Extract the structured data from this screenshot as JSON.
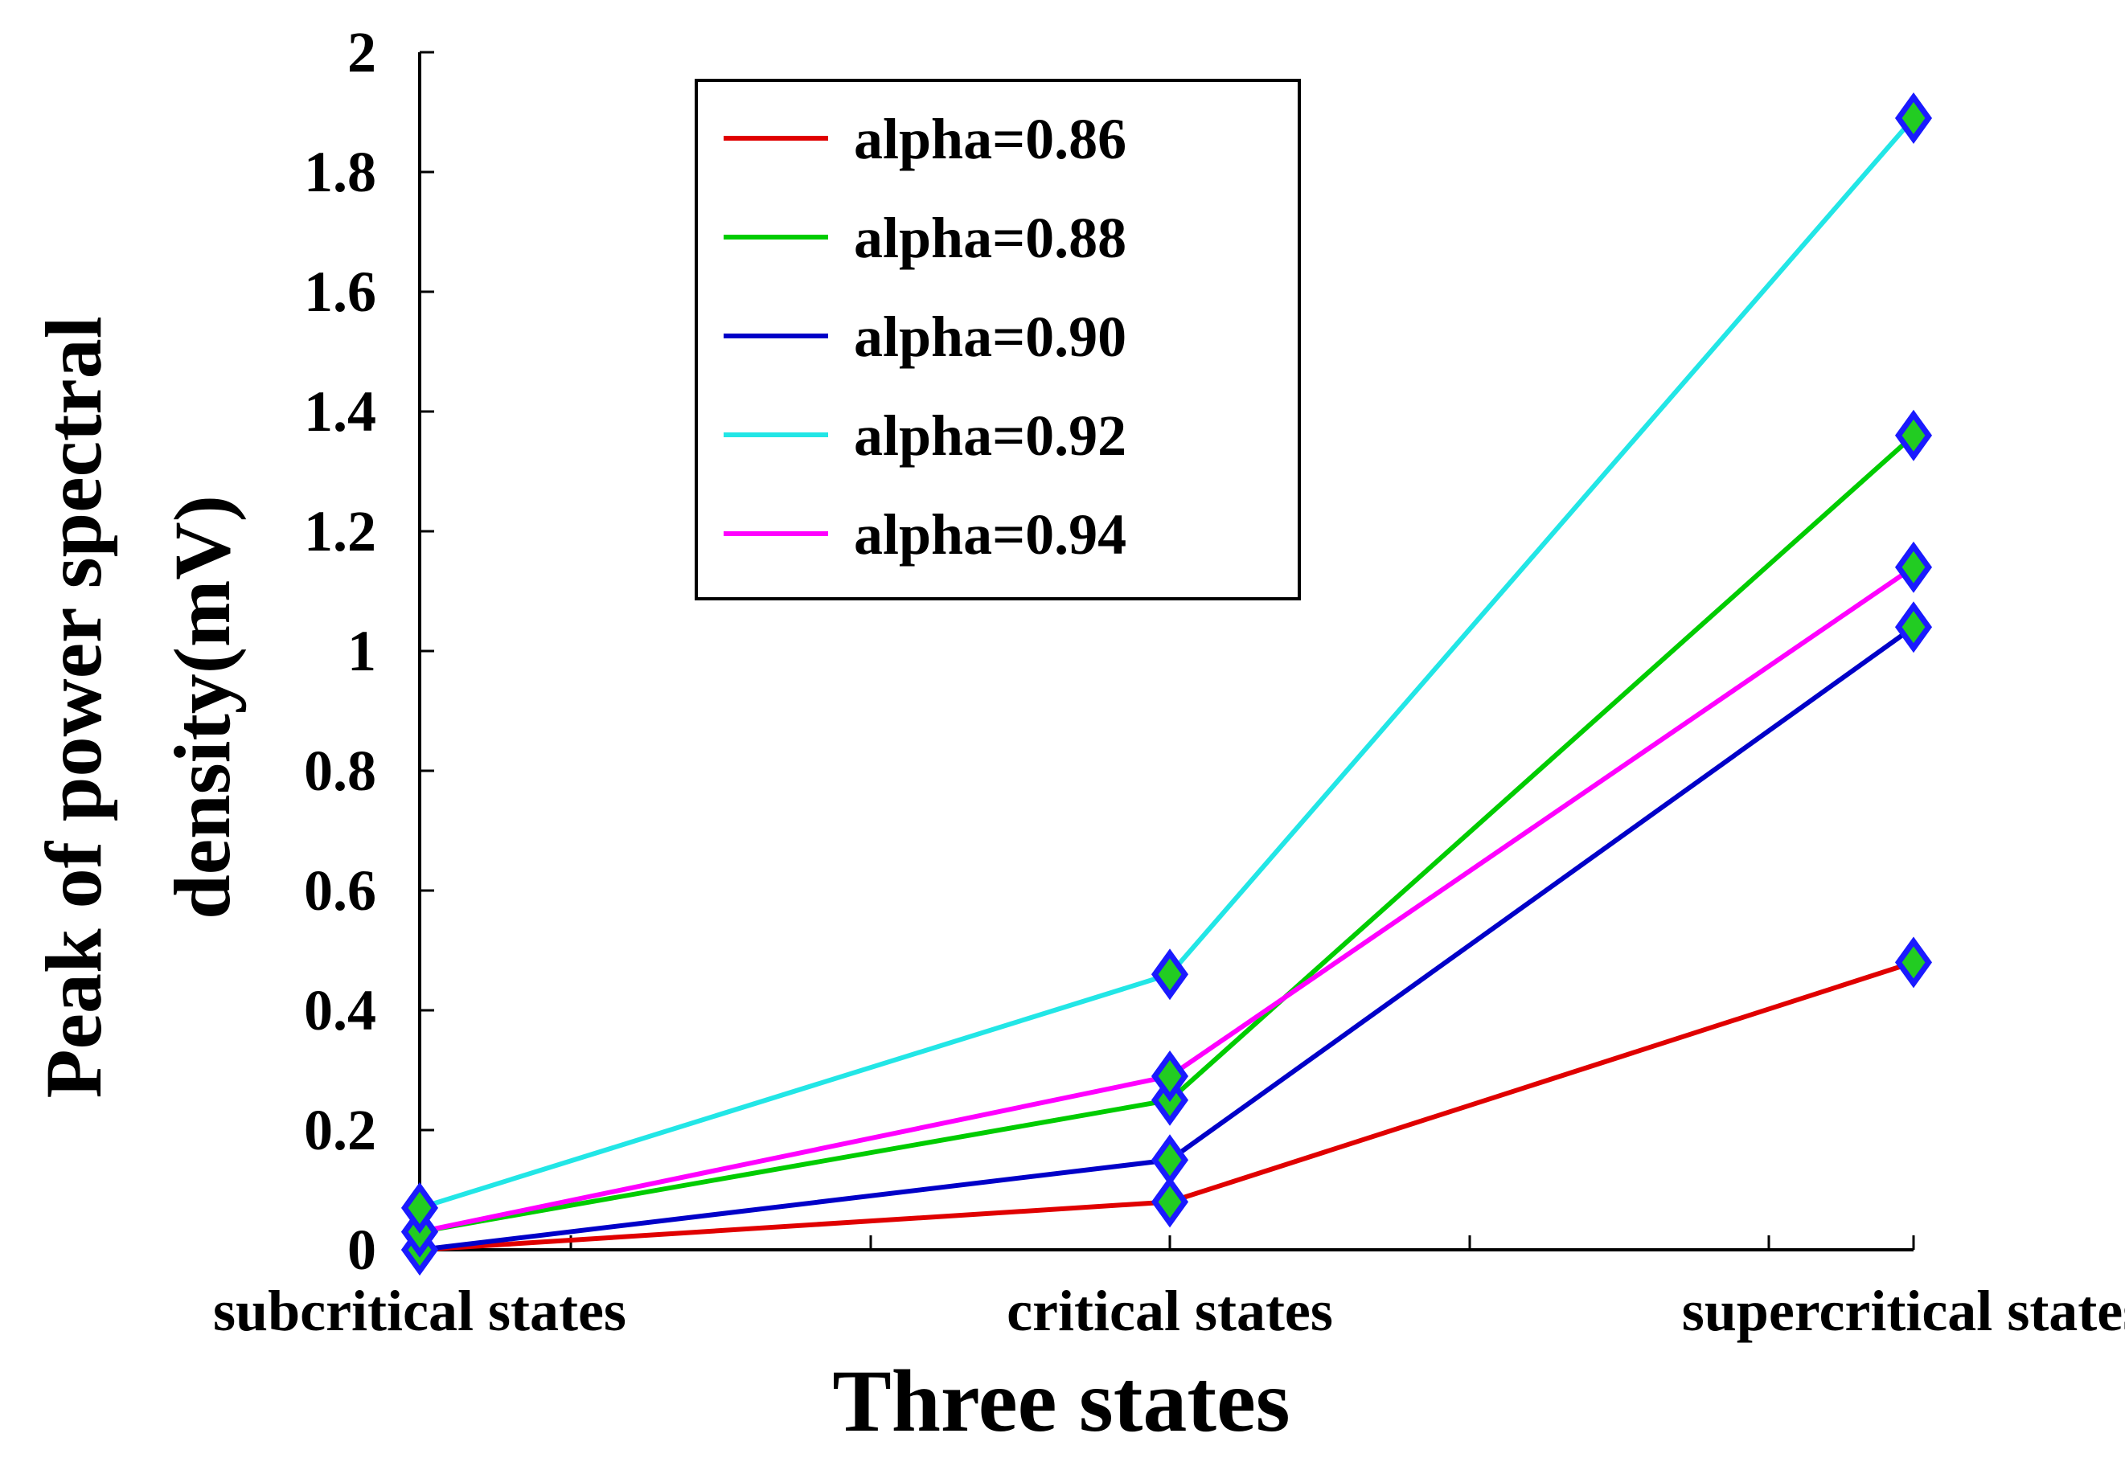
{
  "chart_data": {
    "type": "line",
    "title": "",
    "xlabel": "Three states",
    "ylabel_line1": "Peak of power spectral",
    "ylabel_line2": "density(mV)",
    "categories": [
      "subcritical states",
      "critical states",
      "supercritical states"
    ],
    "ylim": [
      0,
      2
    ],
    "yticks": [
      0,
      0.2,
      0.4,
      0.6,
      0.8,
      1,
      1.2,
      1.4,
      1.6,
      1.8,
      2
    ],
    "ytick_labels": [
      "0",
      "0.2",
      "0.4",
      "0.6",
      "0.8",
      "1",
      "1.2",
      "1.4",
      "1.6",
      "1.8",
      "2"
    ],
    "grid": false,
    "legend_position": "top-center",
    "marker": {
      "shape": "diamond",
      "fill": "#22cc22",
      "edge": "#1a1aff"
    },
    "series": [
      {
        "name": "alpha=0.86",
        "color": "#e00000",
        "values": [
          0.0,
          0.08,
          0.48
        ]
      },
      {
        "name": "alpha=0.88",
        "color": "#00cc00",
        "values": [
          0.03,
          0.25,
          1.36
        ]
      },
      {
        "name": "alpha=0.90",
        "color": "#0000c8",
        "values": [
          0.0,
          0.15,
          1.04
        ]
      },
      {
        "name": "alpha=0.92",
        "color": "#22e6e6",
        "values": [
          0.07,
          0.46,
          1.89
        ]
      },
      {
        "name": "alpha=0.94",
        "color": "#ff00ff",
        "values": [
          0.03,
          0.29,
          1.14
        ]
      }
    ]
  }
}
